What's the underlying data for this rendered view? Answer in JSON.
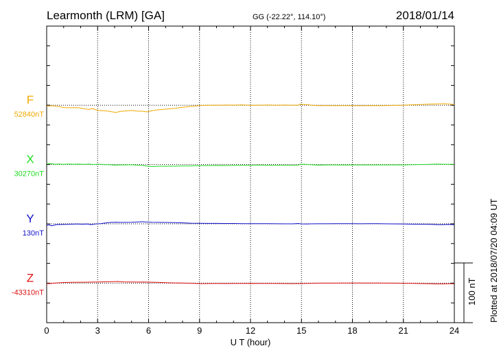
{
  "chart_data": {
    "type": "line",
    "title": "Learmonth (LRM)  [GA]",
    "coords": "GG (-22.22°, 114.10°)",
    "date": "2018/01/14",
    "xlabel": "U T (hour)",
    "xlim": [
      0,
      24
    ],
    "xticks": [
      "0",
      "3",
      "6",
      "9",
      "12",
      "15",
      "18",
      "21",
      "24"
    ],
    "scale_label": "100 nT",
    "plotted_note": "Plotted at 2018/07/20 04:09 UT",
    "grid": true,
    "units_per_row": 25,
    "series": [
      {
        "name": "F",
        "baseline_label": "52840nT",
        "color": "#f0a800",
        "baseline_row": 4,
        "points": [
          [
            0,
            1.0
          ],
          [
            0.2,
            1.0
          ],
          [
            0.35,
            0.6
          ],
          [
            0.5,
            1.3
          ],
          [
            0.7,
            1.6
          ],
          [
            0.9,
            2.6
          ],
          [
            1.1,
            3.0
          ],
          [
            1.4,
            3.3
          ],
          [
            1.7,
            3.0
          ],
          [
            1.9,
            3.3
          ],
          [
            2.2,
            4.5
          ],
          [
            2.5,
            5.5
          ],
          [
            2.7,
            4.2
          ],
          [
            3.0,
            6.7
          ],
          [
            3.3,
            7.0
          ],
          [
            3.6,
            7.5
          ],
          [
            3.9,
            8.6
          ],
          [
            4.1,
            9.2
          ],
          [
            4.3,
            8.0
          ],
          [
            4.6,
            7.5
          ],
          [
            5.0,
            6.7
          ],
          [
            5.3,
            7.4
          ],
          [
            5.6,
            7.6
          ],
          [
            5.9,
            8.5
          ],
          [
            6.2,
            7.0
          ],
          [
            6.6,
            5.8
          ],
          [
            7.0,
            5.0
          ],
          [
            7.5,
            4.1
          ],
          [
            8.0,
            2.7
          ],
          [
            8.5,
            1.6
          ],
          [
            9.0,
            0.5
          ],
          [
            9.5,
            0.0
          ],
          [
            10.0,
            0.1
          ],
          [
            10.5,
            -0.2
          ],
          [
            11.0,
            -0.1
          ],
          [
            11.5,
            -0.4
          ],
          [
            12.0,
            0.2
          ],
          [
            12.5,
            0.0
          ],
          [
            13.0,
            -0.3
          ],
          [
            13.5,
            0.0
          ],
          [
            14.0,
            -0.2
          ],
          [
            14.5,
            0.0
          ],
          [
            14.8,
            0.0
          ],
          [
            14.9,
            -1.3
          ],
          [
            15.1,
            -0.8
          ],
          [
            15.3,
            -0.8
          ],
          [
            15.6,
            0.0
          ],
          [
            16.0,
            0.6
          ],
          [
            16.5,
            0.5
          ],
          [
            17.0,
            0.6
          ],
          [
            17.5,
            0.5
          ],
          [
            18.0,
            0.6
          ],
          [
            18.5,
            0.7
          ],
          [
            19.0,
            0.5
          ],
          [
            19.5,
            0.6
          ],
          [
            20.0,
            0.4
          ],
          [
            20.5,
            0.3
          ],
          [
            21.0,
            0.1
          ],
          [
            21.5,
            -0.5
          ],
          [
            22.0,
            -0.9
          ],
          [
            22.5,
            -1.3
          ],
          [
            23.0,
            -1.6
          ],
          [
            23.4,
            -1.9
          ],
          [
            23.7,
            -1.4
          ],
          [
            24.0,
            -0.9
          ]
        ]
      },
      {
        "name": "X",
        "baseline_label": "30270nT",
        "color": "#22dd22",
        "baseline_row": 7,
        "points": [
          [
            0,
            -0.8
          ],
          [
            0.2,
            -1.1
          ],
          [
            0.5,
            -0.3
          ],
          [
            0.7,
            -0.6
          ],
          [
            1.0,
            -0.2
          ],
          [
            1.3,
            -0.6
          ],
          [
            1.6,
            -0.3
          ],
          [
            1.9,
            -0.5
          ],
          [
            2.2,
            -0.2
          ],
          [
            2.5,
            -0.6
          ],
          [
            2.7,
            0.2
          ],
          [
            3.0,
            -0.4
          ],
          [
            3.4,
            0.1
          ],
          [
            3.7,
            0.3
          ],
          [
            4.0,
            1.0
          ],
          [
            4.3,
            0.4
          ],
          [
            4.6,
            0.6
          ],
          [
            5.0,
            0.3
          ],
          [
            5.3,
            0.9
          ],
          [
            5.6,
            1.1
          ],
          [
            5.9,
            2.1
          ],
          [
            6.2,
            2.5
          ],
          [
            6.6,
            2.2
          ],
          [
            7.0,
            2.2
          ],
          [
            7.5,
            2.1
          ],
          [
            8.0,
            1.9
          ],
          [
            8.5,
            1.8
          ],
          [
            9.0,
            1.5
          ],
          [
            9.5,
            1.4
          ],
          [
            10.0,
            1.2
          ],
          [
            10.5,
            1.3
          ],
          [
            11.0,
            1.1
          ],
          [
            11.5,
            1.0
          ],
          [
            12.0,
            1.1
          ],
          [
            12.5,
            0.9
          ],
          [
            13.0,
            1.0
          ],
          [
            13.5,
            1.0
          ],
          [
            14.0,
            1.0
          ],
          [
            14.5,
            1.1
          ],
          [
            14.8,
            1.0
          ],
          [
            14.9,
            -0.3
          ],
          [
            15.2,
            -0.3
          ],
          [
            15.5,
            0.3
          ],
          [
            16.0,
            0.9
          ],
          [
            16.5,
            0.6
          ],
          [
            17.0,
            0.5
          ],
          [
            17.5,
            0.7
          ],
          [
            18.0,
            0.6
          ],
          [
            18.5,
            0.5
          ],
          [
            19.0,
            0.6
          ],
          [
            19.5,
            0.5
          ],
          [
            20.0,
            0.5
          ],
          [
            20.5,
            0.6
          ],
          [
            21.0,
            0.5
          ],
          [
            21.5,
            0.3
          ],
          [
            22.0,
            0.0
          ],
          [
            22.5,
            -0.2
          ],
          [
            23.0,
            -0.5
          ],
          [
            23.5,
            -0.3
          ],
          [
            24.0,
            -0.3
          ]
        ]
      },
      {
        "name": "Y",
        "baseline_label": "130nT",
        "color": "#1010cc",
        "baseline_row": 10,
        "points": [
          [
            0,
            2.0
          ],
          [
            0.15,
            1.3
          ],
          [
            0.3,
            2.5
          ],
          [
            0.5,
            1.4
          ],
          [
            0.7,
            0.8
          ],
          [
            0.9,
            0.9
          ],
          [
            1.2,
            0.6
          ],
          [
            1.5,
            0.4
          ],
          [
            1.8,
            0.3
          ],
          [
            2.1,
            0.5
          ],
          [
            2.4,
            0.3
          ],
          [
            2.6,
            1.0
          ],
          [
            2.9,
            0.1
          ],
          [
            3.2,
            -0.3
          ],
          [
            3.5,
            -1.2
          ],
          [
            3.8,
            -1.8
          ],
          [
            4.1,
            -2.0
          ],
          [
            4.4,
            -1.7
          ],
          [
            4.7,
            -1.8
          ],
          [
            5.0,
            -1.9
          ],
          [
            5.3,
            -2.3
          ],
          [
            5.6,
            -2.6
          ],
          [
            5.9,
            -2.3
          ],
          [
            6.2,
            -1.9
          ],
          [
            6.6,
            -1.8
          ],
          [
            7.0,
            -1.7
          ],
          [
            7.5,
            -1.5
          ],
          [
            8.0,
            -1.2
          ],
          [
            8.5,
            -0.8
          ],
          [
            9.0,
            -0.6
          ],
          [
            9.5,
            -0.5
          ],
          [
            10.0,
            -0.5
          ],
          [
            10.5,
            -0.4
          ],
          [
            11.0,
            -0.4
          ],
          [
            11.5,
            -0.3
          ],
          [
            12.0,
            -0.3
          ],
          [
            12.5,
            -0.2
          ],
          [
            13.0,
            -0.2
          ],
          [
            13.5,
            -0.1
          ],
          [
            14.0,
            0.0
          ],
          [
            14.5,
            0.0
          ],
          [
            14.8,
            -0.4
          ],
          [
            15.0,
            0.1
          ],
          [
            15.3,
            0.2
          ],
          [
            15.6,
            0.0
          ],
          [
            16.0,
            -0.1
          ],
          [
            16.5,
            -0.1
          ],
          [
            17.0,
            -0.2
          ],
          [
            17.5,
            -0.2
          ],
          [
            18.0,
            -0.2
          ],
          [
            18.5,
            -0.1
          ],
          [
            19.0,
            -0.2
          ],
          [
            19.5,
            -0.2
          ],
          [
            20.0,
            0.0
          ],
          [
            20.5,
            0.1
          ],
          [
            21.0,
            0.3
          ],
          [
            21.5,
            0.4
          ],
          [
            22.0,
            0.5
          ],
          [
            22.5,
            0.6
          ],
          [
            23.0,
            1.0
          ],
          [
            23.3,
            1.0
          ],
          [
            23.6,
            0.8
          ],
          [
            24.0,
            1.0
          ]
        ]
      },
      {
        "name": "Z",
        "baseline_label": "-43310nT",
        "color": "#e01010",
        "baseline_row": 13,
        "points": [
          [
            0,
            0.5
          ],
          [
            0.2,
            0.6
          ],
          [
            0.4,
            0.1
          ],
          [
            0.6,
            -0.3
          ],
          [
            0.9,
            -0.7
          ],
          [
            1.2,
            -0.9
          ],
          [
            1.5,
            -1.0
          ],
          [
            1.8,
            -1.1
          ],
          [
            2.1,
            -1.1
          ],
          [
            2.4,
            -1.2
          ],
          [
            2.7,
            -1.3
          ],
          [
            3.0,
            -1.5
          ],
          [
            3.3,
            -1.6
          ],
          [
            3.6,
            -1.7
          ],
          [
            3.9,
            -1.9
          ],
          [
            4.2,
            -2.1
          ],
          [
            4.5,
            -1.6
          ],
          [
            4.8,
            -1.5
          ],
          [
            5.1,
            -1.4
          ],
          [
            5.4,
            -1.3
          ],
          [
            5.7,
            -1.4
          ],
          [
            6.0,
            -1.2
          ],
          [
            6.5,
            -1.0
          ],
          [
            7.0,
            -0.6
          ],
          [
            7.5,
            -0.3
          ],
          [
            8.0,
            -0.1
          ],
          [
            8.5,
            0.2
          ],
          [
            9.0,
            0.6
          ],
          [
            9.5,
            0.5
          ],
          [
            10.0,
            0.4
          ],
          [
            10.5,
            0.5
          ],
          [
            11.0,
            0.4
          ],
          [
            11.5,
            0.4
          ],
          [
            12.0,
            0.3
          ],
          [
            12.5,
            0.4
          ],
          [
            13.0,
            0.4
          ],
          [
            13.5,
            0.4
          ],
          [
            14.0,
            0.5
          ],
          [
            14.5,
            0.6
          ],
          [
            15.0,
            0.5
          ],
          [
            15.5,
            0.3
          ],
          [
            16.0,
            0.0
          ],
          [
            16.5,
            0.0
          ],
          [
            17.0,
            0.0
          ],
          [
            17.5,
            -0.1
          ],
          [
            18.0,
            -0.1
          ],
          [
            18.5,
            -0.1
          ],
          [
            19.0,
            -0.1
          ],
          [
            19.5,
            -0.1
          ],
          [
            20.0,
            0.0
          ],
          [
            20.5,
            0.0
          ],
          [
            21.0,
            0.2
          ],
          [
            21.5,
            0.3
          ],
          [
            22.0,
            0.5
          ],
          [
            22.5,
            0.8
          ],
          [
            23.0,
            1.0
          ],
          [
            23.3,
            1.0
          ],
          [
            23.6,
            0.8
          ],
          [
            24.0,
            0.7
          ]
        ]
      }
    ]
  }
}
